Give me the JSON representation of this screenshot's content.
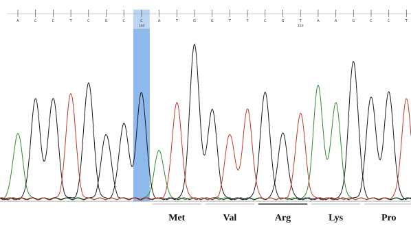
{
  "chromatogram": {
    "bases": [
      "A",
      "C",
      "C",
      "T",
      "C",
      "G",
      "C",
      "C",
      "A",
      "T",
      "G",
      "G",
      "T",
      "T",
      "C",
      "G",
      "T",
      "A",
      "A",
      "G",
      "C",
      "C",
      "T"
    ],
    "base_colors": {
      "A": "#2e8b2e",
      "C": "#1a1a1a",
      "G": "#1a1a1a",
      "T": "#c0392b"
    },
    "highlight_color": "#7aaee8",
    "highlighted_index": 7,
    "position_labels": [
      {
        "index": 7,
        "text": "140"
      },
      {
        "index": 16,
        "text": "150"
      }
    ],
    "codons": [
      {
        "label": "Met"
      },
      {
        "label": "Val"
      },
      {
        "label": "Arg"
      },
      {
        "label": "Lys"
      },
      {
        "label": "Pro"
      }
    ]
  }
}
